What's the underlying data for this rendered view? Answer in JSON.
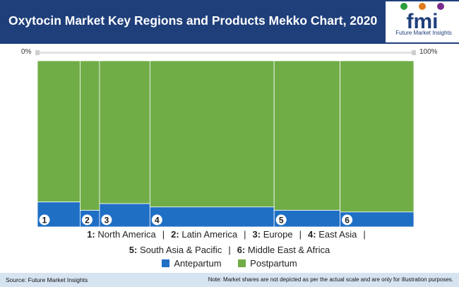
{
  "header": {
    "title": "Oxytocin Market Key Regions and Products Mekko Chart, 2020",
    "logo_text": "Future Market Insights",
    "background": "#1f3f7a"
  },
  "axis": {
    "left_label": "0%",
    "right_label": "100%"
  },
  "chart_data": {
    "type": "mekko",
    "title": "Oxytocin Market Key Regions and Products Mekko Chart, 2020",
    "series_names": [
      "Antepartum",
      "Postpartum"
    ],
    "colors": {
      "Antepartum": "#1f6fc5",
      "Postpartum": "#70ad47"
    },
    "segments": [
      {
        "label": "1",
        "width": 11,
        "antepartum": 15,
        "postpartum": 85
      },
      {
        "label": "2",
        "width": 5,
        "antepartum": 10,
        "postpartum": 90
      },
      {
        "label": "3",
        "width": 13,
        "antepartum": 14,
        "postpartum": 86
      },
      {
        "label": "4",
        "width": 32,
        "antepartum": 12,
        "postpartum": 88
      },
      {
        "label": "5",
        "width": 17,
        "antepartum": 10,
        "postpartum": 90
      },
      {
        "label": "6",
        "width": 19,
        "antepartum": 9,
        "postpartum": 91
      }
    ]
  },
  "legend": {
    "line1": [
      {
        "num": "1:",
        "name": "North America"
      },
      {
        "num": "2:",
        "name": "Latin America"
      },
      {
        "num": "3:",
        "name": "Europe"
      },
      {
        "num": "4:",
        "name": "East Asia"
      }
    ],
    "line2": [
      {
        "num": "5:",
        "name": "South Asia & Pacific"
      },
      {
        "num": "6:",
        "name": "Middle East & Africa"
      }
    ],
    "separator": "|",
    "series": [
      {
        "name": "Antepartum",
        "color": "#1f6fc5"
      },
      {
        "name": "Postpartum",
        "color": "#70ad47"
      }
    ]
  },
  "footer": {
    "source": "Source: Future Market Insights",
    "note": "Note: Market shares are not depicted as per the actual scale and are only for illustration purposes."
  }
}
